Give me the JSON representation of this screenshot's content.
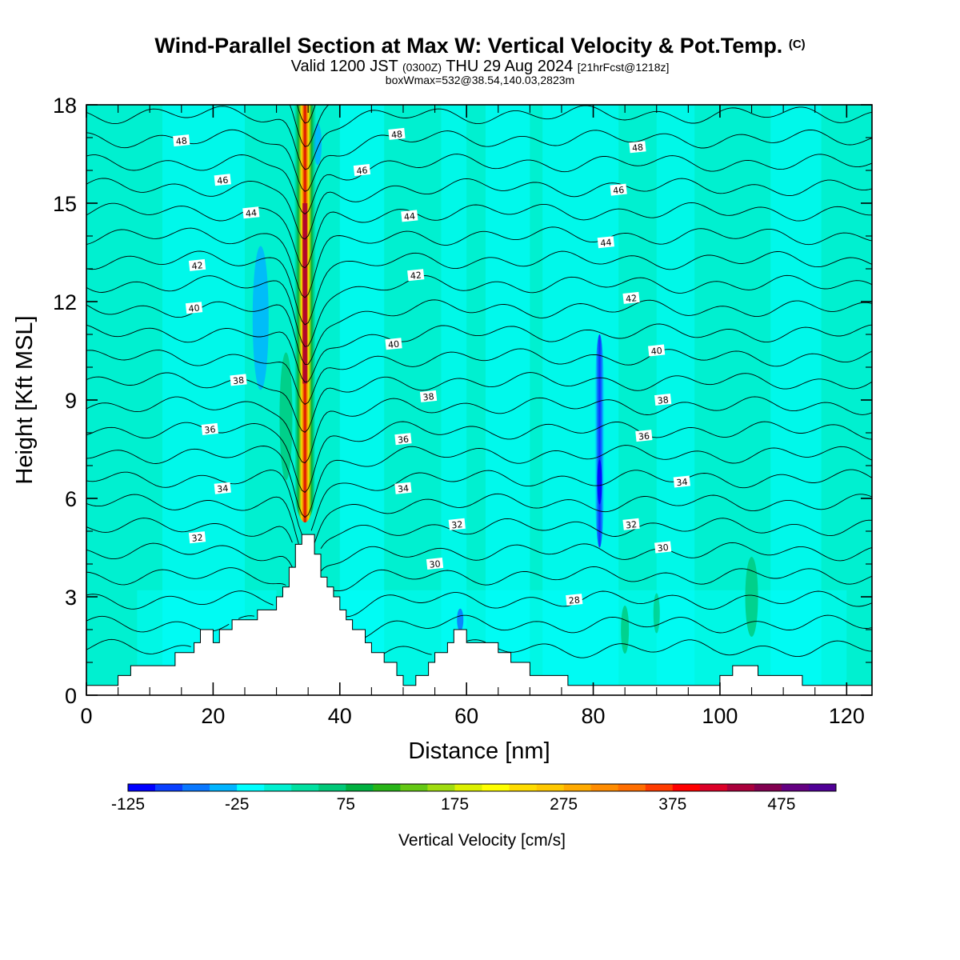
{
  "title": {
    "main": "Wind-Parallel Section at Max W: Vertical Velocity & Pot.Temp.",
    "copyright": "(C)",
    "valid_prefix": "Valid 1200 JST",
    "valid_utc": "(0300Z)",
    "valid_date": "THU 29 Aug 2024",
    "forecast": "[21hrFcst@1218z]",
    "box_info": "boxWmax=532@38.54,140.03,2823m"
  },
  "chart_data": {
    "type": "heatmap",
    "xlabel": "Distance [nm]",
    "ylabel": "Height [Kft MSL]",
    "xlim": [
      0,
      124
    ],
    "ylim": [
      0,
      18
    ],
    "x_ticks": [
      0,
      20,
      40,
      60,
      80,
      100,
      120
    ],
    "y_ticks": [
      0,
      3,
      6,
      9,
      12,
      15,
      18
    ],
    "colorbar": {
      "label": "Vertical Velocity [cm/s]",
      "min": -125,
      "max": 525,
      "step": 25,
      "tick_labels": [
        -125,
        -25,
        75,
        175,
        275,
        375,
        475
      ],
      "colors": [
        "#0000ff",
        "#0a40ff",
        "#0a78ff",
        "#00b4ff",
        "#00ffff",
        "#00f0d0",
        "#00e0a0",
        "#00c878",
        "#00b040",
        "#28b418",
        "#64c814",
        "#a0dc10",
        "#dcf000",
        "#ffff00",
        "#ffdc00",
        "#ffc800",
        "#ffaa00",
        "#ff8c00",
        "#ff6e00",
        "#ff3c00",
        "#ff0000",
        "#dc0028",
        "#aa003c",
        "#820050",
        "#640082",
        "#500096"
      ]
    },
    "theta_contour_labels": [
      {
        "value": 48,
        "positions": [
          [
            15,
            16.9
          ],
          [
            49,
            17.1
          ],
          [
            87,
            16.7
          ]
        ]
      },
      {
        "value": 46,
        "positions": [
          [
            21.5,
            15.7
          ],
          [
            43.5,
            16
          ],
          [
            84,
            15.4
          ]
        ]
      },
      {
        "value": 44,
        "positions": [
          [
            26,
            14.7
          ],
          [
            51,
            14.6
          ],
          [
            82,
            13.8
          ]
        ]
      },
      {
        "value": 42,
        "positions": [
          [
            17.5,
            13.1
          ],
          [
            52,
            12.8
          ],
          [
            86,
            12.1
          ]
        ]
      },
      {
        "value": 40,
        "positions": [
          [
            17,
            11.8
          ],
          [
            48.5,
            10.7
          ],
          [
            90,
            10.5
          ]
        ]
      },
      {
        "value": 38,
        "positions": [
          [
            24,
            9.6
          ],
          [
            54,
            9.1
          ],
          [
            91,
            9
          ]
        ]
      },
      {
        "value": 36,
        "positions": [
          [
            19.5,
            8.1
          ],
          [
            50,
            7.8
          ],
          [
            88,
            7.9
          ]
        ]
      },
      {
        "value": 34,
        "positions": [
          [
            21.5,
            6.3
          ],
          [
            50,
            6.3
          ],
          [
            94,
            6.5
          ]
        ]
      },
      {
        "value": 32,
        "positions": [
          [
            17.5,
            4.8
          ],
          [
            58.5,
            5.2
          ],
          [
            86,
            5.2
          ]
        ]
      },
      {
        "value": 30,
        "positions": [
          [
            55,
            4
          ],
          [
            91,
            4.5
          ]
        ]
      },
      {
        "value": 28,
        "positions": [
          [
            77,
            2.9
          ]
        ]
      }
    ],
    "terrain_profile": [
      [
        0,
        0.3
      ],
      [
        5,
        0.3
      ],
      [
        5,
        0.6
      ],
      [
        7,
        0.6
      ],
      [
        7,
        0.9
      ],
      [
        14,
        0.9
      ],
      [
        14,
        1.3
      ],
      [
        17,
        1.3
      ],
      [
        17,
        1.6
      ],
      [
        18,
        1.6
      ],
      [
        18,
        2
      ],
      [
        20,
        2
      ],
      [
        20,
        1.6
      ],
      [
        21,
        1.6
      ],
      [
        21,
        2
      ],
      [
        23,
        2
      ],
      [
        23,
        2.3
      ],
      [
        27,
        2.3
      ],
      [
        27,
        2.6
      ],
      [
        30,
        2.6
      ],
      [
        30,
        3
      ],
      [
        31,
        3
      ],
      [
        31,
        3.3
      ],
      [
        32,
        3.3
      ],
      [
        32,
        3.9
      ],
      [
        33,
        3.9
      ],
      [
        33,
        4.6
      ],
      [
        34,
        4.6
      ],
      [
        34,
        4.9
      ],
      [
        36,
        4.9
      ],
      [
        36,
        4.3
      ],
      [
        37,
        4.3
      ],
      [
        37,
        3.6
      ],
      [
        38,
        3.6
      ],
      [
        38,
        3.3
      ],
      [
        39,
        3.3
      ],
      [
        39,
        3
      ],
      [
        40,
        3
      ],
      [
        40,
        2.6
      ],
      [
        41,
        2.6
      ],
      [
        41,
        2.3
      ],
      [
        42,
        2.3
      ],
      [
        42,
        2
      ],
      [
        44,
        2
      ],
      [
        44,
        1.6
      ],
      [
        45,
        1.6
      ],
      [
        45,
        1.3
      ],
      [
        47,
        1.3
      ],
      [
        47,
        1
      ],
      [
        49,
        1
      ],
      [
        49,
        0.6
      ],
      [
        50,
        0.6
      ],
      [
        50,
        0.3
      ],
      [
        52,
        0.3
      ],
      [
        52,
        0.6
      ],
      [
        54,
        0.6
      ],
      [
        54,
        1
      ],
      [
        55,
        1
      ],
      [
        55,
        1.3
      ],
      [
        57,
        1.3
      ],
      [
        57,
        1.6
      ],
      [
        58,
        1.6
      ],
      [
        58,
        2
      ],
      [
        60,
        2
      ],
      [
        60,
        1.6
      ],
      [
        65,
        1.6
      ],
      [
        65,
        1.3
      ],
      [
        67,
        1.3
      ],
      [
        67,
        1
      ],
      [
        70,
        1
      ],
      [
        70,
        0.6
      ],
      [
        76,
        0.6
      ],
      [
        76,
        0.3
      ],
      [
        100,
        0.3
      ],
      [
        100,
        0.6
      ],
      [
        102,
        0.6
      ],
      [
        102,
        0.9
      ],
      [
        106,
        0.9
      ],
      [
        106,
        0.6
      ],
      [
        113,
        0.6
      ],
      [
        113,
        0.3
      ],
      [
        124,
        0.3
      ]
    ],
    "features": [
      {
        "kind": "updraft",
        "x": 34.5,
        "y_from": 4.9,
        "y_to": 18,
        "peak_w": 532
      },
      {
        "kind": "downdraft",
        "x": 81,
        "y_from": 4.5,
        "y_to": 11,
        "peak_w": -125
      }
    ]
  }
}
